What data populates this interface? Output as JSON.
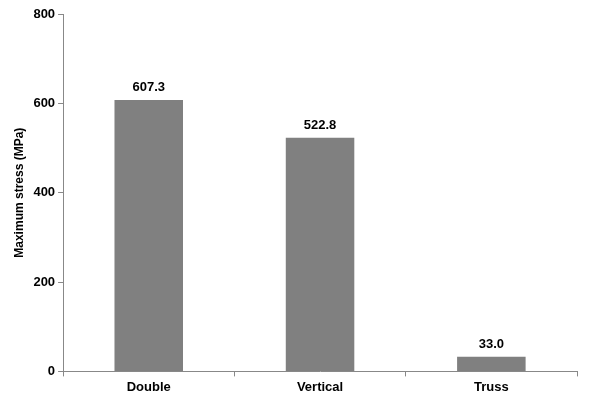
{
  "chart_data": {
    "type": "bar",
    "y_label": "Maximum stress (MPa)",
    "categories": [
      "Double",
      "Vertical",
      "Truss"
    ],
    "values": [
      607.3,
      522.8,
      33.0
    ],
    "value_labels": [
      "607.3",
      "522.8",
      "33.0"
    ],
    "color": "#808080",
    "ylim": [
      0,
      800
    ],
    "yticks": [
      0,
      200,
      400,
      600,
      800
    ],
    "grid": false,
    "data_labels": true
  }
}
